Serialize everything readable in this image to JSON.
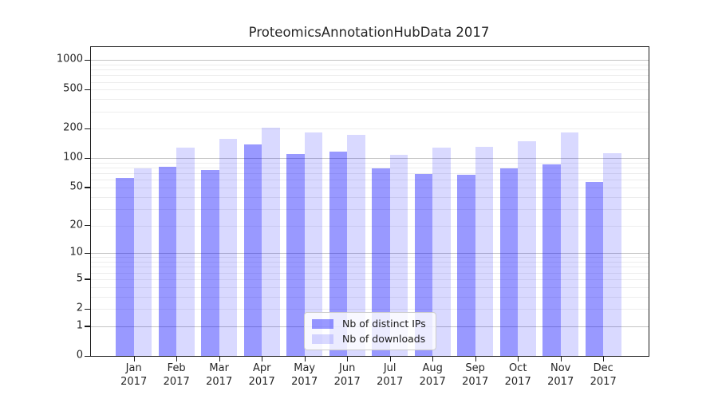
{
  "chart_data": {
    "type": "bar",
    "title": "ProteomicsAnnotationHubData 2017",
    "year_label": "2017",
    "categories": [
      "Jan",
      "Feb",
      "Mar",
      "Apr",
      "May",
      "Jun",
      "Jul",
      "Aug",
      "Sep",
      "Oct",
      "Nov",
      "Dec"
    ],
    "series": [
      {
        "name": "Nb of distinct IPs",
        "color": "#0000ff",
        "opacity": 0.4,
        "values": [
          63,
          82,
          76,
          138,
          110,
          116,
          79,
          69,
          68,
          79,
          86,
          57
        ]
      },
      {
        "name": "Nb of downloads",
        "color": "#0000ff",
        "opacity": 0.15,
        "values": [
          79,
          129,
          157,
          205,
          183,
          174,
          109,
          128,
          131,
          148,
          182,
          113
        ]
      }
    ],
    "xlabel": "",
    "ylabel": "",
    "y_axis": {
      "scale": "log1p",
      "max": 1350,
      "ticks": [
        {
          "value": 1000,
          "label": "1000"
        },
        {
          "value": 500,
          "label": "500"
        },
        {
          "value": 200,
          "label": "200"
        },
        {
          "value": 100,
          "label": "100"
        },
        {
          "value": 50,
          "label": "50"
        },
        {
          "value": 20,
          "label": "20"
        },
        {
          "value": 10,
          "label": "10"
        },
        {
          "value": 5,
          "label": "5"
        },
        {
          "value": 2,
          "label": "2"
        },
        {
          "value": 1,
          "label": "1"
        },
        {
          "value": 0,
          "label": "0"
        }
      ],
      "major_gridlines": [
        1,
        10,
        100,
        1000
      ],
      "minor_gridlines": [
        2,
        3,
        4,
        5,
        6,
        7,
        8,
        9,
        20,
        30,
        40,
        50,
        60,
        70,
        80,
        90,
        200,
        300,
        400,
        500,
        600,
        700,
        800,
        900
      ]
    },
    "grid": true,
    "legend_position": "bottom-center"
  },
  "colors": {
    "background": "#ffffff",
    "bar_ips_on_white": "#9999ff",
    "bar_downloads_on_white": "#d9d9ff",
    "grid_major": "#c4c4c4",
    "grid_minor": "#ededed",
    "axis": "#1a1a1a",
    "text": "#262626"
  }
}
